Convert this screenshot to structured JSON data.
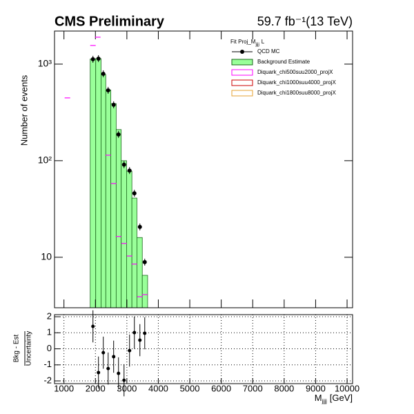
{
  "chart_data": [
    {
      "type": "histogram",
      "title": "CMS Preliminary",
      "lumi_label": "59.7 fb⁻¹(13 TeV)",
      "ylabel": "Number of events",
      "legend_title": [
        "Fit Proj_M",
        "jjjj",
        "L"
      ],
      "log_y": true,
      "xlim": [
        700,
        10175
      ],
      "ylim": [
        3,
        2200
      ],
      "xticks": [
        1000,
        2000,
        3000,
        4000,
        5000,
        6000,
        7000,
        8000,
        9000,
        10000
      ],
      "yticks": [
        10,
        {
          "value": 100,
          "label": "10²"
        },
        {
          "value": 1000,
          "label": "10³"
        }
      ],
      "bins": [
        1834,
        2010,
        2180,
        2330,
        2490,
        2660,
        2820,
        2990,
        3160,
        3320,
        3490,
        3660
      ],
      "background": {
        "name": "Background Estimate",
        "color": "#99ff99",
        "values": [
          1130,
          1140,
          780,
          540,
          390,
          210,
          100,
          78,
          41,
          16,
          6.5
        ]
      },
      "series": [
        {
          "name": "QCD MC",
          "color": "#000000",
          "x": [
            1922,
            2097,
            2251,
            2405,
            2580,
            2734,
            2910,
            3085,
            3239,
            3414,
            3568
          ],
          "values": [
            1122,
            1140,
            794,
            535,
            379,
            187,
            91,
            79,
            46,
            20.6,
            8.9
          ]
        },
        {
          "name": "Diquark_chi500suu2000_projX",
          "color": "#ff00ff",
          "x": [
            1110,
            1922,
            2075,
            2405,
            2580,
            2734,
            2910,
            3085,
            3239,
            3414,
            3568
          ],
          "values": [
            447,
            1560,
            1900,
            114,
            58,
            16.4,
            13.9,
            10.3,
            8.5,
            3.9,
            4.1
          ]
        },
        {
          "name": "Diquark_chi1000suu4000_projX",
          "color": "#cc0000",
          "x": [],
          "values": []
        },
        {
          "name": "Diquark_chi1800suu8000_projX",
          "color": "#e6a030",
          "x": [],
          "values": []
        }
      ]
    },
    {
      "type": "ratio",
      "ylabel": [
        "Bkg - Est",
        "Uncertainty"
      ],
      "xlabel": [
        "M",
        "jjjj",
        "[GeV]"
      ],
      "xlim": [
        700,
        10175
      ],
      "ylim": [
        -2.17,
        2.13
      ],
      "xticks": [
        1000,
        2000,
        3000,
        4000,
        5000,
        6000,
        7000,
        8000,
        9000,
        10000
      ],
      "yticks": [
        -2,
        -1,
        0,
        1,
        2
      ],
      "grid": true,
      "x": [
        1922,
        2097,
        2251,
        2405,
        2580,
        2734,
        2910,
        3085,
        3239,
        3414,
        3568
      ],
      "values": [
        1.4,
        -1.48,
        -0.24,
        -1.23,
        -0.49,
        -1.53,
        -1.96,
        -0.11,
        1.01,
        0.54,
        0.97
      ],
      "errors": [
        1,
        1,
        1,
        1,
        1,
        1,
        1,
        1,
        1,
        1,
        1
      ]
    }
  ]
}
